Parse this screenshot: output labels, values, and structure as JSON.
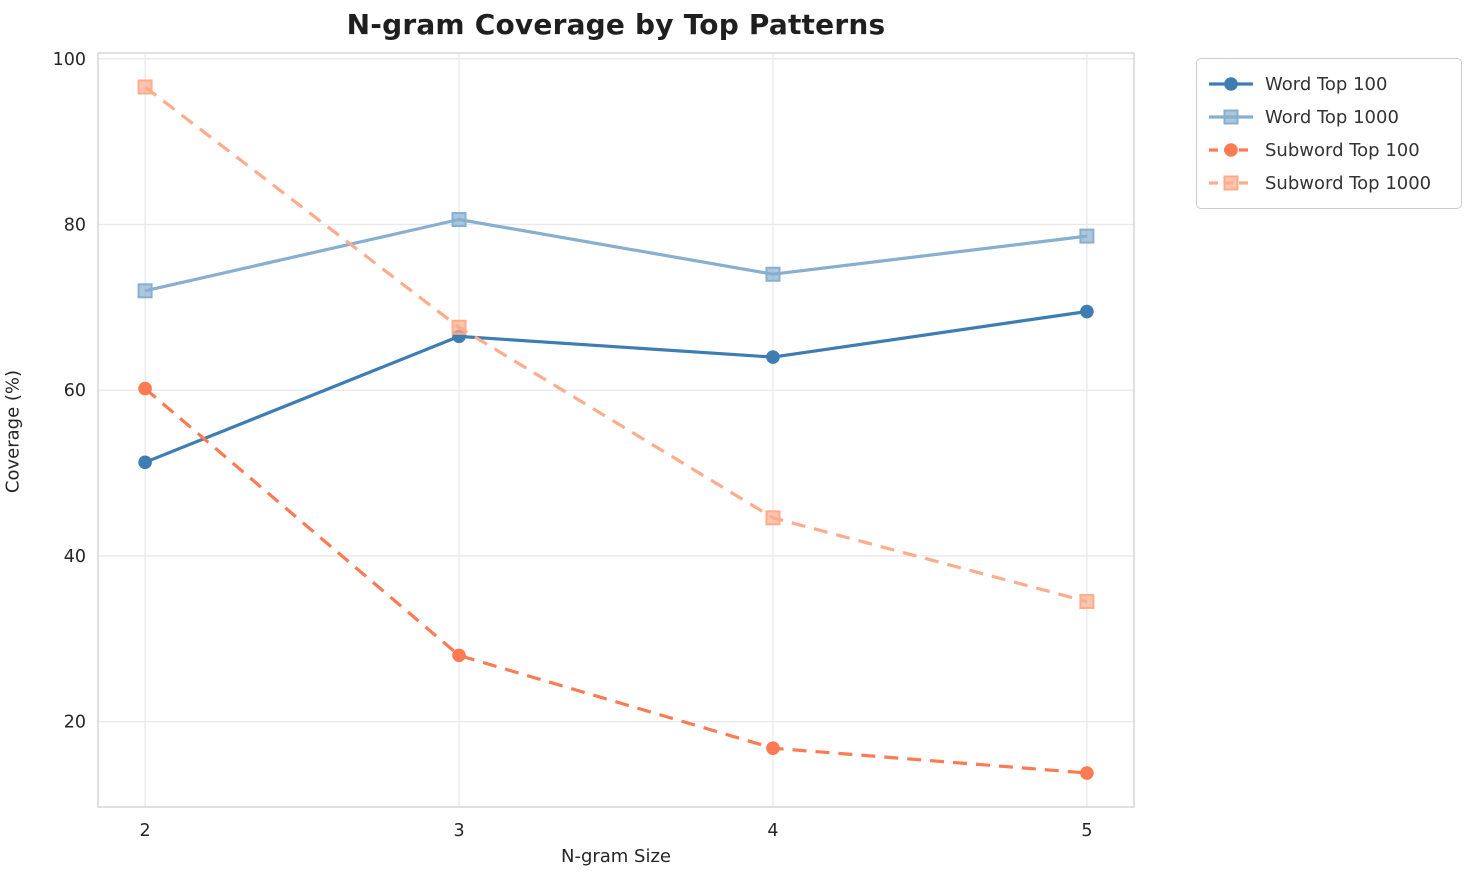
{
  "title": "N-gram Coverage by Top Patterns",
  "chart_data": {
    "type": "line",
    "title": "N-gram Coverage by Top Patterns",
    "xlabel": "N-gram Size",
    "ylabel": "Coverage (%)",
    "x": [
      2,
      3,
      4,
      5
    ],
    "xticks": [
      2,
      3,
      4,
      5
    ],
    "yticks": [
      20,
      40,
      60,
      80,
      100
    ],
    "xlim": [
      1.85,
      5.15
    ],
    "ylim": [
      9.7,
      100.7
    ],
    "grid": true,
    "legend_position": "outside-top-right",
    "series": [
      {
        "name": "Word Top 100",
        "values": [
          51.3,
          66.5,
          64.0,
          69.5
        ],
        "color": "#3D7DB1",
        "marker": "circle",
        "dash": false
      },
      {
        "name": "Word Top 1000",
        "values": [
          72.0,
          80.6,
          74.0,
          78.6
        ],
        "color": "#88AFCF",
        "marker": "square",
        "dash": false
      },
      {
        "name": "Subword Top 100",
        "values": [
          60.2,
          28.0,
          16.8,
          13.8
        ],
        "color": "#FC7B52",
        "marker": "circle",
        "dash": true
      },
      {
        "name": "Subword Top 1000",
        "values": [
          96.6,
          67.6,
          44.6,
          34.5
        ],
        "color": "#FFAC8C",
        "marker": "square",
        "dash": true
      }
    ],
    "style": {
      "grid_color": "#e9e9e9",
      "spine_color": "#d9d9d9",
      "tick_label_color": "#262626",
      "line_width": 3.2,
      "dash_pattern": "14 9"
    }
  }
}
